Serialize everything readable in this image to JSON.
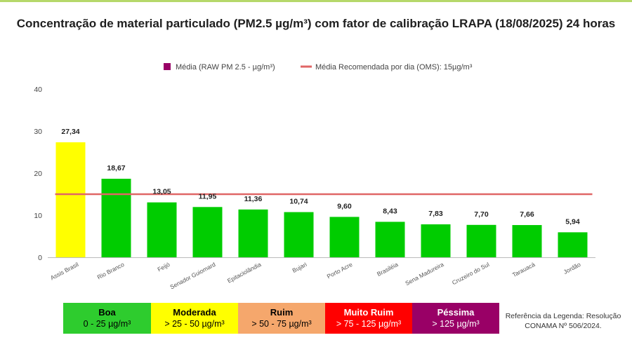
{
  "title": "Concentração de material particulado (PM2.5 µg/m³) com fator de calibração LRAPA  (18/08/2025) 24 horas",
  "chart_data": {
    "type": "bar",
    "title": "Concentração de material particulado (PM2.5 µg/m³) com fator de calibração LRAPA  (18/08/2025) 24 horas",
    "categories": [
      "Assis Brasil",
      "Rio Branco",
      "Feijó",
      "Senador Guiomard",
      "Epitaciolândia",
      "Bujari",
      "Porto Acre",
      "Brasiléia",
      "Sena Madureira",
      "Cruzeiro do Sul",
      "Tarauacá",
      "Jordão"
    ],
    "values": [
      27.34,
      18.67,
      13.05,
      11.95,
      11.36,
      10.74,
      9.6,
      8.43,
      7.83,
      7.7,
      7.66,
      5.94
    ],
    "value_labels": [
      "27,34",
      "18,67",
      "13,05",
      "11,95",
      "11,36",
      "10,74",
      "9,60",
      "8,43",
      "7,83",
      "7,70",
      "7,66",
      "5,94"
    ],
    "bar_colors": [
      "#ffff00",
      "#00cc00",
      "#00cc00",
      "#00cc00",
      "#00cc00",
      "#00cc00",
      "#00cc00",
      "#00cc00",
      "#00cc00",
      "#00cc00",
      "#00cc00",
      "#00cc00"
    ],
    "reference_line": {
      "label": "Média Recomendada por dia (OMS): 15µg/m³",
      "value": 15,
      "color": "#e06666"
    },
    "series_legend": {
      "label": "Média (RAW PM 2.5 - µg/m³)",
      "color": "#990066"
    },
    "ylim": [
      0,
      40
    ],
    "yticks": [
      0,
      10,
      20,
      30,
      40
    ],
    "xlabel": "",
    "ylabel": "",
    "grid": false,
    "legend_position": "top-center"
  },
  "quality_legend": [
    {
      "name": "Boa",
      "range": "0 - 25 µg/m³",
      "bg": "#2ecc2e",
      "color": "#000000"
    },
    {
      "name": "Moderada",
      "range": "> 25 - 50 µg/m³",
      "bg": "#ffff00",
      "color": "#000000"
    },
    {
      "name": "Ruim",
      "range": "> 50 - 75 µg/m³",
      "bg": "#f5a76c",
      "color": "#000000"
    },
    {
      "name": "Muito Ruim",
      "range": "> 75 - 125 µg/m³",
      "bg": "#ff0000",
      "color": "#ffffff"
    },
    {
      "name": "Péssima",
      "range": "> 125 µg/m³",
      "bg": "#990066",
      "color": "#ffffff"
    }
  ],
  "reference_note": {
    "line1": "Referência da Legenda: Resolução",
    "line2": "CONAMA Nº 506/2024."
  }
}
